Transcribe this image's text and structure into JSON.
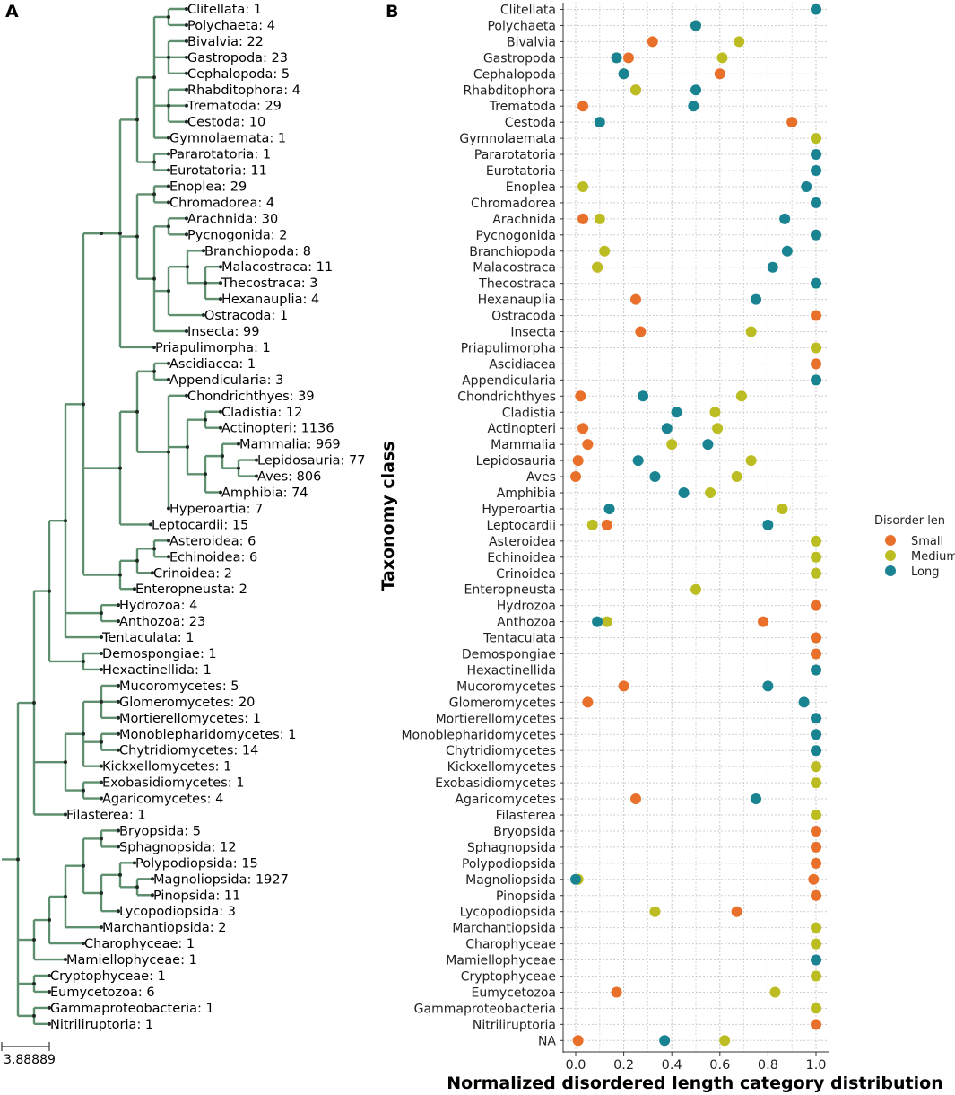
{
  "panels": {
    "a_label": "A",
    "b_label": "B"
  },
  "tree": {
    "scale_label": "3.88889",
    "leaves": [
      {
        "name": "Clitellata",
        "count": 1
      },
      {
        "name": "Polychaeta",
        "count": 4
      },
      {
        "name": "Bivalvia",
        "count": 22
      },
      {
        "name": "Gastropoda",
        "count": 23
      },
      {
        "name": "Cephalopoda",
        "count": 5
      },
      {
        "name": "Rhabditophora",
        "count": 4
      },
      {
        "name": "Trematoda",
        "count": 29
      },
      {
        "name": "Cestoda",
        "count": 10
      },
      {
        "name": "Gymnolaemata",
        "count": 1
      },
      {
        "name": "Pararotatoria",
        "count": 1
      },
      {
        "name": "Eurotatoria",
        "count": 11
      },
      {
        "name": "Enoplea",
        "count": 29
      },
      {
        "name": "Chromadorea",
        "count": 4
      },
      {
        "name": "Arachnida",
        "count": 30
      },
      {
        "name": "Pycnogonida",
        "count": 2
      },
      {
        "name": "Branchiopoda",
        "count": 8
      },
      {
        "name": "Malacostraca",
        "count": 11
      },
      {
        "name": "Thecostraca",
        "count": 3
      },
      {
        "name": "Hexanauplia",
        "count": 4
      },
      {
        "name": "Ostracoda",
        "count": 1
      },
      {
        "name": "Insecta",
        "count": 99
      },
      {
        "name": "Priapulimorpha",
        "count": 1
      },
      {
        "name": "Ascidiacea",
        "count": 1
      },
      {
        "name": "Appendicularia",
        "count": 3
      },
      {
        "name": "Chondrichthyes",
        "count": 39
      },
      {
        "name": "Cladistia",
        "count": 12
      },
      {
        "name": "Actinopteri",
        "count": 1136
      },
      {
        "name": "Mammalia",
        "count": 969
      },
      {
        "name": "Lepidosauria",
        "count": 77
      },
      {
        "name": "Aves",
        "count": 806
      },
      {
        "name": "Amphibia",
        "count": 74
      },
      {
        "name": "Hyperoartia",
        "count": 7
      },
      {
        "name": "Leptocardii",
        "count": 15
      },
      {
        "name": "Asteroidea",
        "count": 6
      },
      {
        "name": "Echinoidea",
        "count": 6
      },
      {
        "name": "Crinoidea",
        "count": 2
      },
      {
        "name": "Enteropneusta",
        "count": 2
      },
      {
        "name": "Hydrozoa",
        "count": 4
      },
      {
        "name": "Anthozoa",
        "count": 23
      },
      {
        "name": "Tentaculata",
        "count": 1
      },
      {
        "name": "Demospongiae",
        "count": 1
      },
      {
        "name": "Hexactinellida",
        "count": 1
      },
      {
        "name": "Mucoromycetes",
        "count": 5
      },
      {
        "name": "Glomeromycetes",
        "count": 20
      },
      {
        "name": "Mortierellomycetes",
        "count": 1
      },
      {
        "name": "Monoblepharidomycetes",
        "count": 1
      },
      {
        "name": "Chytridiomycetes",
        "count": 14
      },
      {
        "name": "Kickxellomycetes",
        "count": 1
      },
      {
        "name": "Exobasidiomycetes",
        "count": 1
      },
      {
        "name": "Agaricomycetes",
        "count": 4
      },
      {
        "name": "Filasterea",
        "count": 1
      },
      {
        "name": "Bryopsida",
        "count": 5
      },
      {
        "name": "Sphagnopsida",
        "count": 12
      },
      {
        "name": "Polypodiopsida",
        "count": 15
      },
      {
        "name": "Magnoliopsida",
        "count": 1927
      },
      {
        "name": "Pinopsida",
        "count": 11
      },
      {
        "name": "Lycopodiopsida",
        "count": 3
      },
      {
        "name": "Marchantiopsida",
        "count": 2
      },
      {
        "name": "Charophyceae",
        "count": 1
      },
      {
        "name": "Mamiellophyceae",
        "count": 1
      },
      {
        "name": "Cryptophyceae",
        "count": 1
      },
      {
        "name": "Eumycetozoa",
        "count": 6
      },
      {
        "name": "Gammaproteobacteria",
        "count": 1
      },
      {
        "name": "Nitriliruptoria",
        "count": 1
      }
    ],
    "branch_color": "#5e8f6e",
    "node_color": "#1f2a24"
  },
  "chart_data": {
    "type": "scatter",
    "title": "",
    "xlabel": "Normalized disordered length category distribution",
    "ylabel": "Taxonomy class",
    "xlim": [
      -0.04,
      1.05
    ],
    "xticks": [
      0.0,
      0.2,
      0.4,
      0.6,
      0.8,
      1.0
    ],
    "xtick_labels": [
      "0.0",
      "0.2",
      "0.4",
      "0.6",
      "0.8",
      "1.0"
    ],
    "grid": true,
    "categories": [
      "Clitellata",
      "Polychaeta",
      "Bivalvia",
      "Gastropoda",
      "Cephalopoda",
      "Rhabditophora",
      "Trematoda",
      "Cestoda",
      "Gymnolaemata",
      "Pararotatoria",
      "Eurotatoria",
      "Enoplea",
      "Chromadorea",
      "Arachnida",
      "Pycnogonida",
      "Branchiopoda",
      "Malacostraca",
      "Thecostraca",
      "Hexanauplia",
      "Ostracoda",
      "Insecta",
      "Priapulimorpha",
      "Ascidiacea",
      "Appendicularia",
      "Chondrichthyes",
      "Cladistia",
      "Actinopteri",
      "Mammalia",
      "Lepidosauria",
      "Aves",
      "Amphibia",
      "Hyperoartia",
      "Leptocardii",
      "Asteroidea",
      "Echinoidea",
      "Crinoidea",
      "Enteropneusta",
      "Hydrozoa",
      "Anthozoa",
      "Tentaculata",
      "Demospongiae",
      "Hexactinellida",
      "Mucoromycetes",
      "Glomeromycetes",
      "Mortierellomycetes",
      "Monoblepharidomycetes",
      "Chytridiomycetes",
      "Kickxellomycetes",
      "Exobasidiomycetes",
      "Agaricomycetes",
      "Filasterea",
      "Bryopsida",
      "Sphagnopsida",
      "Polypodiopsida",
      "Magnoliopsida",
      "Pinopsida",
      "Lycopodiopsida",
      "Marchantiopsida",
      "Charophyceae",
      "Mamiellophyceae",
      "Cryptophyceae",
      "Eumycetozoa",
      "Gammaproteobacteria",
      "Nitriliruptoria",
      "NA"
    ],
    "legend": {
      "title": "Disorder len",
      "position": "right"
    },
    "series": [
      {
        "name": "Small",
        "color": "#e8702a",
        "points": [
          [
            "Bivalvia",
            0.32
          ],
          [
            "Gastropoda",
            0.22
          ],
          [
            "Cephalopoda",
            0.6
          ],
          [
            "Rhabditophora",
            0.25
          ],
          [
            "Trematoda",
            0.03
          ],
          [
            "Cestoda",
            0.9
          ],
          [
            "Arachnida",
            0.03
          ],
          [
            "Malacostraca",
            0.09
          ],
          [
            "Hexanauplia",
            0.25
          ],
          [
            "Ostracoda",
            1.0
          ],
          [
            "Insecta",
            0.27
          ],
          [
            "Ascidiacea",
            1.0
          ],
          [
            "Chondrichthyes",
            0.02
          ],
          [
            "Actinopteri",
            0.03
          ],
          [
            "Mammalia",
            0.05
          ],
          [
            "Lepidosauria",
            0.01
          ],
          [
            "Aves",
            0.0
          ],
          [
            "Leptocardii",
            0.13
          ],
          [
            "Hydrozoa",
            1.0
          ],
          [
            "Anthozoa",
            0.78
          ],
          [
            "Tentaculata",
            1.0
          ],
          [
            "Demospongiae",
            1.0
          ],
          [
            "Mucoromycetes",
            0.2
          ],
          [
            "Glomeromycetes",
            0.05
          ],
          [
            "Agaricomycetes",
            0.25
          ],
          [
            "Bryopsida",
            1.0
          ],
          [
            "Sphagnopsida",
            1.0
          ],
          [
            "Polypodiopsida",
            1.0
          ],
          [
            "Magnoliopsida",
            0.99
          ],
          [
            "Pinopsida",
            1.0
          ],
          [
            "Lycopodiopsida",
            0.67
          ],
          [
            "Eumycetozoa",
            0.17
          ],
          [
            "Nitriliruptoria",
            1.0
          ],
          [
            "NA",
            0.01
          ]
        ]
      },
      {
        "name": "Medium",
        "color": "#bcbd22",
        "points": [
          [
            "Polychaeta",
            0.5
          ],
          [
            "Bivalvia",
            0.68
          ],
          [
            "Gastropoda",
            0.61
          ],
          [
            "Cephalopoda",
            0.2
          ],
          [
            "Rhabditophora",
            0.25
          ],
          [
            "Gymnolaemata",
            1.0
          ],
          [
            "Enoplea",
            0.03
          ],
          [
            "Arachnida",
            0.1
          ],
          [
            "Branchiopoda",
            0.12
          ],
          [
            "Malacostraca",
            0.09
          ],
          [
            "Insecta",
            0.73
          ],
          [
            "Priapulimorpha",
            1.0
          ],
          [
            "Chondrichthyes",
            0.69
          ],
          [
            "Cladistia",
            0.58
          ],
          [
            "Actinopteri",
            0.59
          ],
          [
            "Mammalia",
            0.4
          ],
          [
            "Lepidosauria",
            0.73
          ],
          [
            "Aves",
            0.67
          ],
          [
            "Amphibia",
            0.56
          ],
          [
            "Hyperoartia",
            0.86
          ],
          [
            "Leptocardii",
            0.07
          ],
          [
            "Asteroidea",
            1.0
          ],
          [
            "Echinoidea",
            1.0
          ],
          [
            "Crinoidea",
            1.0
          ],
          [
            "Enteropneusta",
            0.5
          ],
          [
            "Anthozoa",
            0.13
          ],
          [
            "Kickxellomycetes",
            1.0
          ],
          [
            "Exobasidiomycetes",
            1.0
          ],
          [
            "Filasterea",
            1.0
          ],
          [
            "Magnoliopsida",
            0.01
          ],
          [
            "Lycopodiopsida",
            0.33
          ],
          [
            "Marchantiopsida",
            1.0
          ],
          [
            "Charophyceae",
            1.0
          ],
          [
            "Cryptophyceae",
            1.0
          ],
          [
            "Eumycetozoa",
            0.83
          ],
          [
            "Gammaproteobacteria",
            1.0
          ],
          [
            "NA",
            0.62
          ]
        ]
      },
      {
        "name": "Long",
        "color": "#1a8391",
        "points": [
          [
            "Clitellata",
            1.0
          ],
          [
            "Polychaeta",
            0.5
          ],
          [
            "Gastropoda",
            0.17
          ],
          [
            "Cephalopoda",
            0.2
          ],
          [
            "Rhabditophora",
            0.5
          ],
          [
            "Trematoda",
            0.49
          ],
          [
            "Cestoda",
            0.1
          ],
          [
            "Pararotatoria",
            1.0
          ],
          [
            "Eurotatoria",
            1.0
          ],
          [
            "Enoplea",
            0.96
          ],
          [
            "Chromadorea",
            1.0
          ],
          [
            "Arachnida",
            0.87
          ],
          [
            "Pycnogonida",
            1.0
          ],
          [
            "Branchiopoda",
            0.88
          ],
          [
            "Malacostraca",
            0.82
          ],
          [
            "Thecostraca",
            1.0
          ],
          [
            "Hexanauplia",
            0.75
          ],
          [
            "Appendicularia",
            1.0
          ],
          [
            "Chondrichthyes",
            0.28
          ],
          [
            "Cladistia",
            0.42
          ],
          [
            "Actinopteri",
            0.38
          ],
          [
            "Mammalia",
            0.55
          ],
          [
            "Lepidosauria",
            0.26
          ],
          [
            "Aves",
            0.33
          ],
          [
            "Amphibia",
            0.45
          ],
          [
            "Hyperoartia",
            0.14
          ],
          [
            "Leptocardii",
            0.8
          ],
          [
            "Anthozoa",
            0.09
          ],
          [
            "Hexactinellida",
            1.0
          ],
          [
            "Mucoromycetes",
            0.8
          ],
          [
            "Glomeromycetes",
            0.95
          ],
          [
            "Mortierellomycetes",
            1.0
          ],
          [
            "Monoblepharidomycetes",
            1.0
          ],
          [
            "Chytridiomycetes",
            1.0
          ],
          [
            "Agaricomycetes",
            0.75
          ],
          [
            "Magnoliopsida",
            0.0
          ],
          [
            "Mamiellophyceae",
            1.0
          ],
          [
            "NA",
            0.37
          ]
        ]
      }
    ]
  }
}
